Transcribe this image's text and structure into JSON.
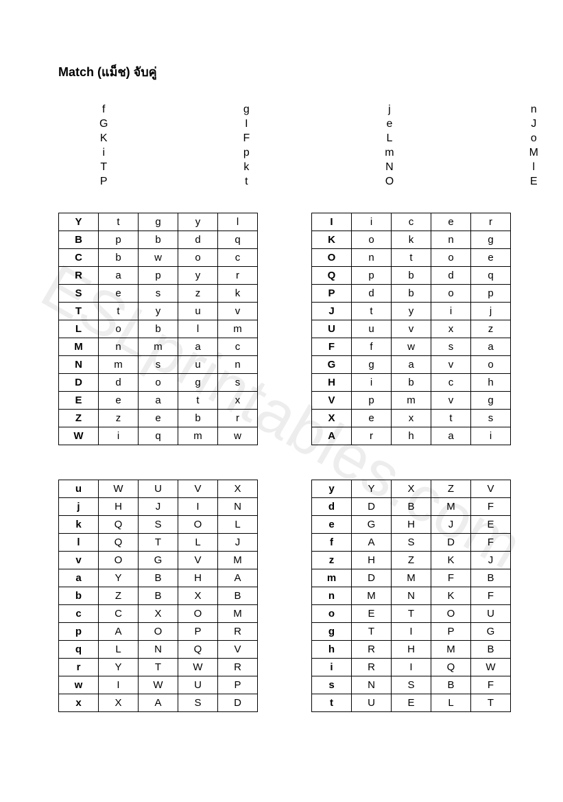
{
  "title": "Match (แม็ช) จับคู่",
  "watermark": "ESLprintables.com",
  "columns": [
    [
      "f",
      "G",
      "K",
      "i",
      "T",
      "P"
    ],
    [
      "g",
      "I",
      "F",
      "p",
      "k",
      "t"
    ],
    [
      "j",
      "e",
      "L",
      "m",
      "N",
      "O"
    ],
    [
      "n",
      "J",
      "o",
      "M",
      "l",
      "E"
    ]
  ],
  "tableTopLeft": [
    [
      "Y",
      "t",
      "g",
      "y",
      "l"
    ],
    [
      "B",
      "p",
      "b",
      "d",
      "q"
    ],
    [
      "C",
      "b",
      "w",
      "o",
      "c"
    ],
    [
      "R",
      "a",
      "p",
      "y",
      "r"
    ],
    [
      "S",
      "e",
      "s",
      "z",
      "k"
    ],
    [
      "T",
      "t",
      "y",
      "u",
      "v"
    ],
    [
      "L",
      "o",
      "b",
      "l",
      "m"
    ],
    [
      "M",
      "n",
      "m",
      "a",
      "c"
    ],
    [
      "N",
      "m",
      "s",
      "u",
      "n"
    ],
    [
      "D",
      "d",
      "o",
      "g",
      "s"
    ],
    [
      "E",
      "e",
      "a",
      "t",
      "x"
    ],
    [
      "Z",
      "z",
      "e",
      "b",
      "r"
    ],
    [
      "W",
      "i",
      "q",
      "m",
      "w"
    ]
  ],
  "tableTopRight": [
    [
      "I",
      "i",
      "c",
      "e",
      "r"
    ],
    [
      "K",
      "o",
      "k",
      "n",
      "g"
    ],
    [
      "O",
      "n",
      "t",
      "o",
      "e"
    ],
    [
      "Q",
      "p",
      "b",
      "d",
      "q"
    ],
    [
      "P",
      "d",
      "b",
      "o",
      "p"
    ],
    [
      "J",
      "t",
      "y",
      "i",
      "j"
    ],
    [
      "U",
      "u",
      "v",
      "x",
      "z"
    ],
    [
      "F",
      "f",
      "w",
      "s",
      "a"
    ],
    [
      "G",
      "g",
      "a",
      "v",
      "o"
    ],
    [
      "H",
      "i",
      "b",
      "c",
      "h"
    ],
    [
      "V",
      "p",
      "m",
      "v",
      "g"
    ],
    [
      "X",
      "e",
      "x",
      "t",
      "s"
    ],
    [
      "A",
      "r",
      "h",
      "a",
      "i"
    ]
  ],
  "tableBotLeft": [
    [
      "u",
      "W",
      "U",
      "V",
      "X"
    ],
    [
      "j",
      "H",
      "J",
      "I",
      "N"
    ],
    [
      "k",
      "Q",
      "S",
      "O",
      "L"
    ],
    [
      "l",
      "Q",
      "T",
      "L",
      "J"
    ],
    [
      "v",
      "O",
      "G",
      "V",
      "M"
    ],
    [
      "a",
      "Y",
      "B",
      "H",
      "A"
    ],
    [
      "b",
      "Z",
      "B",
      "X",
      "B"
    ],
    [
      "c",
      "C",
      "X",
      "O",
      "M"
    ],
    [
      "p",
      "A",
      "O",
      "P",
      "R"
    ],
    [
      "q",
      "L",
      "N",
      "Q",
      "V"
    ],
    [
      "r",
      "Y",
      "T",
      "W",
      "R"
    ],
    [
      "w",
      "I",
      "W",
      "U",
      "P"
    ],
    [
      "x",
      "X",
      "A",
      "S",
      "D"
    ]
  ],
  "tableBotRight": [
    [
      "y",
      "Y",
      "X",
      "Z",
      "V"
    ],
    [
      "d",
      "D",
      "B",
      "M",
      "F"
    ],
    [
      "e",
      "G",
      "H",
      "J",
      "E"
    ],
    [
      "f",
      "A",
      "S",
      "D",
      "F"
    ],
    [
      "z",
      "H",
      "Z",
      "K",
      "J"
    ],
    [
      "m",
      "D",
      "M",
      "F",
      "B"
    ],
    [
      "n",
      "M",
      "N",
      "K",
      "F"
    ],
    [
      "o",
      "E",
      "T",
      "O",
      "U"
    ],
    [
      "g",
      "T",
      "I",
      "P",
      "G"
    ],
    [
      "h",
      "R",
      "H",
      "M",
      "B"
    ],
    [
      "i",
      "R",
      "I",
      "Q",
      "W"
    ],
    [
      "s",
      "N",
      "S",
      "B",
      "F"
    ],
    [
      "t",
      "U",
      "E",
      "L",
      "T"
    ]
  ]
}
